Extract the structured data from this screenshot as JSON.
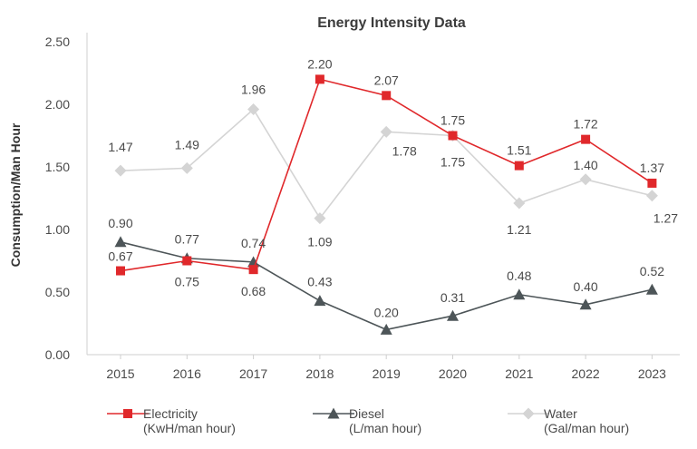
{
  "chart_data": {
    "type": "line",
    "title": "Energy Intensity Data",
    "xlabel": "",
    "ylabel": "Consumption/Man Hour",
    "ylim": [
      0,
      2.5
    ],
    "yticks": [
      "0.00",
      "0.50",
      "1.00",
      "1.50",
      "2.00",
      "2.50"
    ],
    "categories": [
      "2015",
      "2016",
      "2017",
      "2018",
      "2019",
      "2020",
      "2021",
      "2022",
      "2023"
    ],
    "grid": false,
    "legend_position": "bottom",
    "series": [
      {
        "name": "Electricity",
        "unit": "(KwH/man hour)",
        "color": "#e0282b",
        "marker": "square",
        "values": [
          0.67,
          0.75,
          0.68,
          2.2,
          2.07,
          1.75,
          1.51,
          1.72,
          1.37
        ],
        "labels": [
          "0.67",
          "0.75",
          "0.68",
          "2.20",
          "2.07",
          "1.75",
          "1.51",
          "1.72",
          "1.37"
        ]
      },
      {
        "name": "Diesel",
        "unit": "(L/man hour)",
        "color": "#4d5558",
        "marker": "triangle",
        "values": [
          0.9,
          0.77,
          0.74,
          0.43,
          0.2,
          0.31,
          0.48,
          0.4,
          0.52
        ],
        "labels": [
          "0.90",
          "0.77",
          "0.74",
          "0.43",
          "0.20",
          "0.31",
          "0.48",
          "0.40",
          "0.52"
        ]
      },
      {
        "name": "Water",
        "unit": "(Gal/man hour)",
        "color": "#d4d4d4",
        "marker": "diamond",
        "values": [
          1.47,
          1.49,
          1.96,
          1.09,
          1.78,
          1.75,
          1.21,
          1.4,
          1.27
        ],
        "labels": [
          "1.47",
          "1.49",
          "1.96",
          "1.09",
          "1.78",
          "1.75",
          "1.21",
          "1.40",
          "1.27"
        ]
      }
    ]
  }
}
